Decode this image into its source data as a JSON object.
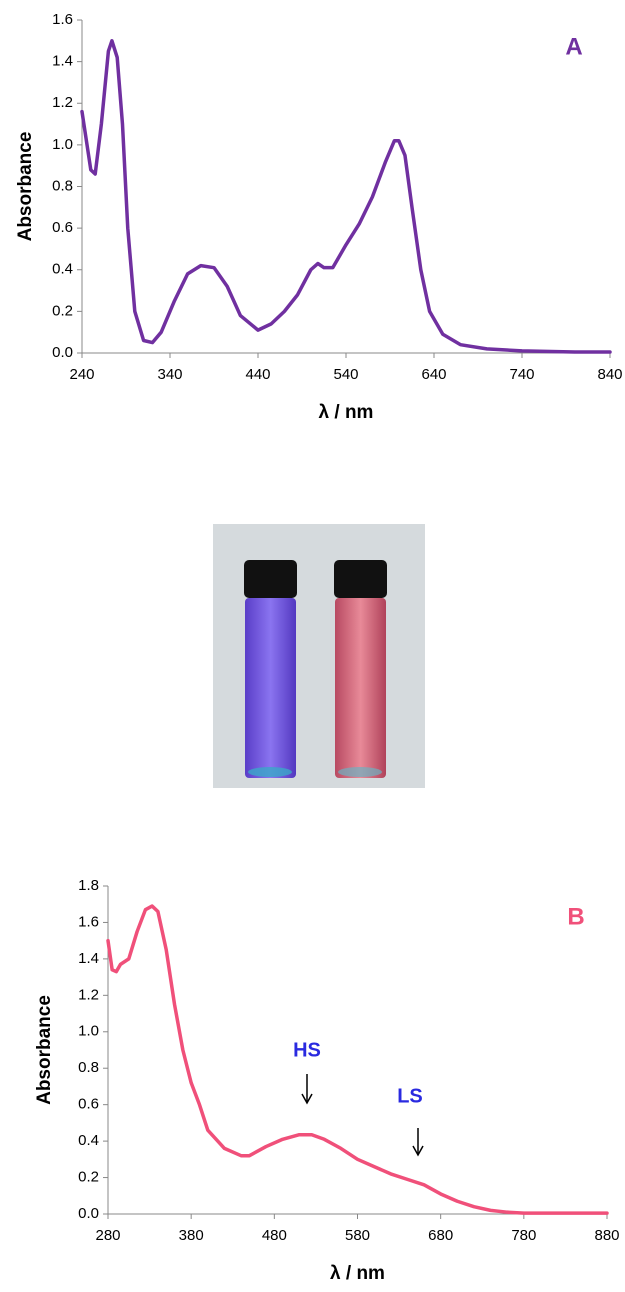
{
  "chart_data": [
    {
      "type": "line",
      "panel_label": "A",
      "xlabel": "λ / nm",
      "ylabel": "Absorbance",
      "x": [
        240,
        250,
        255,
        262,
        270,
        274,
        280,
        286,
        292,
        300,
        310,
        320,
        330,
        345,
        360,
        375,
        390,
        405,
        420,
        440,
        455,
        470,
        485,
        500,
        508,
        515,
        525,
        540,
        555,
        570,
        585,
        595,
        600,
        607,
        615,
        625,
        635,
        650,
        670,
        700,
        740,
        800,
        840
      ],
      "series": [
        {
          "color": "#7030a0",
          "values": [
            1.16,
            0.88,
            0.86,
            1.1,
            1.45,
            1.5,
            1.42,
            1.1,
            0.6,
            0.2,
            0.06,
            0.05,
            0.1,
            0.25,
            0.38,
            0.42,
            0.41,
            0.32,
            0.18,
            0.11,
            0.14,
            0.2,
            0.28,
            0.4,
            0.43,
            0.41,
            0.41,
            0.52,
            0.62,
            0.75,
            0.92,
            1.02,
            1.02,
            0.95,
            0.7,
            0.4,
            0.2,
            0.09,
            0.04,
            0.02,
            0.01,
            0.005,
            0.005
          ]
        }
      ],
      "xlim": [
        240,
        840
      ],
      "xticks": [
        240,
        340,
        440,
        540,
        640,
        740,
        840
      ],
      "ylim": [
        0,
        1.6
      ],
      "yticks": [
        {
          "value": 0,
          "label": "0.0"
        },
        {
          "value": 0.2,
          "label": "0.2"
        },
        {
          "value": 0.4,
          "label": "0.4"
        },
        {
          "value": 0.6,
          "label": "0.6"
        },
        {
          "value": 0.8,
          "label": "0.8"
        },
        {
          "value": 1,
          "label": "1.0"
        },
        {
          "value": 1.2,
          "label": "1.2"
        },
        {
          "value": 1.4,
          "label": "1.4"
        },
        {
          "value": 1.6,
          "label": "1.6"
        }
      ],
      "grid": false
    },
    {
      "type": "line",
      "panel_label": "B",
      "xlabel": "λ / nm",
      "ylabel": "Absorbance",
      "annotations": [
        "HS",
        "LS"
      ],
      "x": [
        280,
        285,
        290,
        295,
        305,
        315,
        325,
        333,
        340,
        350,
        360,
        370,
        380,
        390,
        400,
        420,
        440,
        450,
        470,
        490,
        510,
        525,
        540,
        560,
        580,
        600,
        620,
        640,
        660,
        680,
        700,
        720,
        740,
        760,
        780,
        880
      ],
      "series": [
        {
          "color": "#f0507a",
          "values": [
            1.5,
            1.34,
            1.33,
            1.37,
            1.4,
            1.55,
            1.67,
            1.69,
            1.66,
            1.45,
            1.15,
            0.9,
            0.72,
            0.6,
            0.46,
            0.36,
            0.32,
            0.32,
            0.37,
            0.41,
            0.435,
            0.435,
            0.41,
            0.36,
            0.3,
            0.26,
            0.22,
            0.19,
            0.16,
            0.11,
            0.07,
            0.04,
            0.02,
            0.01,
            0.005,
            0.005
          ]
        }
      ],
      "xlim": [
        280,
        880
      ],
      "xticks": [
        280,
        380,
        480,
        580,
        680,
        780,
        880
      ],
      "ylim": [
        0,
        1.8
      ],
      "yticks": [
        {
          "value": 0,
          "label": "0.0"
        },
        {
          "value": 0.2,
          "label": "0.2"
        },
        {
          "value": 0.4,
          "label": "0.4"
        },
        {
          "value": 0.6,
          "label": "0.6"
        },
        {
          "value": 0.8,
          "label": "0.8"
        },
        {
          "value": 1,
          "label": "1.0"
        },
        {
          "value": 1.2,
          "label": "1.2"
        },
        {
          "value": 1.4,
          "label": "1.4"
        },
        {
          "value": 1.6,
          "label": "1.6"
        },
        {
          "value": 1.8,
          "label": "1.8"
        }
      ],
      "grid": false
    }
  ]
}
